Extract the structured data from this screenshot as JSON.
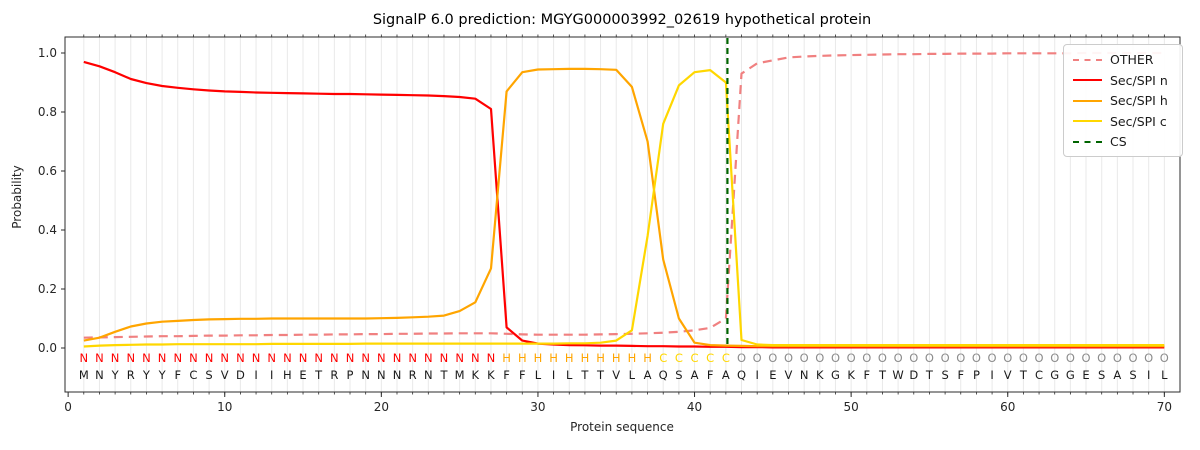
{
  "chart_data": {
    "type": "line",
    "title": "SignalP 6.0 prediction: MGYG000003992_02619 hypothetical protein",
    "xlabel": "Protein sequence",
    "ylabel": "Probability",
    "xlim": [
      -0.2,
      71.0
    ],
    "ylim": [
      -0.15,
      1.055
    ],
    "xticks": [
      0,
      10,
      20,
      30,
      40,
      50,
      60,
      70
    ],
    "yticks": [
      "0.0",
      "0.2",
      "0.4",
      "0.6",
      "0.8",
      "1.0"
    ],
    "grid": "light vertical gridline at every residue position, no horizontal grid",
    "x": [
      1,
      2,
      3,
      4,
      5,
      6,
      7,
      8,
      9,
      10,
      11,
      12,
      13,
      14,
      15,
      16,
      17,
      18,
      19,
      20,
      21,
      22,
      23,
      24,
      25,
      26,
      27,
      28,
      29,
      30,
      31,
      32,
      33,
      34,
      35,
      36,
      37,
      38,
      39,
      40,
      41,
      42,
      43,
      44,
      45,
      46,
      47,
      48,
      49,
      50,
      51,
      52,
      53,
      54,
      55,
      56,
      57,
      58,
      59,
      60,
      61,
      62,
      63,
      64,
      65,
      66,
      67,
      68,
      69,
      70
    ],
    "series": [
      {
        "name": "OTHER",
        "color": "#f08080",
        "style": "dashed",
        "values": [
          0.035,
          0.036,
          0.037,
          0.038,
          0.039,
          0.04,
          0.04,
          0.041,
          0.042,
          0.042,
          0.043,
          0.043,
          0.044,
          0.044,
          0.045,
          0.045,
          0.046,
          0.046,
          0.047,
          0.047,
          0.048,
          0.048,
          0.049,
          0.049,
          0.05,
          0.05,
          0.05,
          0.048,
          0.046,
          0.045,
          0.045,
          0.045,
          0.045,
          0.046,
          0.047,
          0.048,
          0.05,
          0.052,
          0.055,
          0.06,
          0.068,
          0.1,
          0.93,
          0.965,
          0.975,
          0.985,
          0.988,
          0.99,
          0.992,
          0.993,
          0.994,
          0.995,
          0.996,
          0.996,
          0.997,
          0.997,
          0.998,
          0.998,
          0.998,
          0.999,
          0.999,
          0.999,
          0.999,
          0.999,
          1.0,
          1.0,
          1.0,
          1.0,
          1.0,
          1.0
        ]
      },
      {
        "name": "Sec/SPI n",
        "color": "#ff0000",
        "style": "solid",
        "values": [
          0.97,
          0.955,
          0.935,
          0.912,
          0.898,
          0.888,
          0.882,
          0.877,
          0.873,
          0.87,
          0.868,
          0.866,
          0.865,
          0.864,
          0.863,
          0.862,
          0.861,
          0.861,
          0.86,
          0.859,
          0.858,
          0.857,
          0.856,
          0.854,
          0.851,
          0.845,
          0.81,
          0.07,
          0.025,
          0.015,
          0.012,
          0.01,
          0.009,
          0.008,
          0.008,
          0.007,
          0.006,
          0.006,
          0.005,
          0.005,
          0.004,
          0.004,
          0.003,
          0.003,
          0.002,
          0.002,
          0.002,
          0.002,
          0.002,
          0.002,
          0.002,
          0.002,
          0.002,
          0.002,
          0.002,
          0.002,
          0.002,
          0.002,
          0.002,
          0.002,
          0.002,
          0.002,
          0.002,
          0.002,
          0.002,
          0.002,
          0.002,
          0.002,
          0.002,
          0.002
        ]
      },
      {
        "name": "Sec/SPI h",
        "color": "#ffa500",
        "style": "solid",
        "values": [
          0.025,
          0.035,
          0.055,
          0.073,
          0.083,
          0.089,
          0.092,
          0.095,
          0.097,
          0.098,
          0.099,
          0.099,
          0.1,
          0.1,
          0.1,
          0.1,
          0.1,
          0.1,
          0.1,
          0.101,
          0.102,
          0.104,
          0.106,
          0.11,
          0.125,
          0.155,
          0.27,
          0.87,
          0.935,
          0.944,
          0.945,
          0.946,
          0.946,
          0.945,
          0.943,
          0.885,
          0.7,
          0.3,
          0.1,
          0.018,
          0.01,
          0.008,
          0.007,
          0.006,
          0.006,
          0.006,
          0.006,
          0.006,
          0.006,
          0.006,
          0.006,
          0.006,
          0.006,
          0.006,
          0.006,
          0.006,
          0.006,
          0.006,
          0.006,
          0.006,
          0.006,
          0.006,
          0.006,
          0.006,
          0.006,
          0.006,
          0.006,
          0.006,
          0.006,
          0.006
        ]
      },
      {
        "name": "Sec/SPI c",
        "color": "#ffd700",
        "style": "solid",
        "values": [
          0.005,
          0.008,
          0.01,
          0.011,
          0.012,
          0.012,
          0.013,
          0.013,
          0.013,
          0.013,
          0.013,
          0.013,
          0.014,
          0.014,
          0.014,
          0.014,
          0.014,
          0.014,
          0.015,
          0.015,
          0.015,
          0.015,
          0.015,
          0.015,
          0.015,
          0.015,
          0.015,
          0.015,
          0.015,
          0.015,
          0.015,
          0.016,
          0.016,
          0.018,
          0.025,
          0.06,
          0.38,
          0.76,
          0.89,
          0.935,
          0.942,
          0.9,
          0.027,
          0.012,
          0.01,
          0.01,
          0.01,
          0.01,
          0.01,
          0.01,
          0.01,
          0.01,
          0.01,
          0.01,
          0.01,
          0.01,
          0.01,
          0.01,
          0.01,
          0.01,
          0.01,
          0.01,
          0.01,
          0.01,
          0.01,
          0.01,
          0.01,
          0.01,
          0.01,
          0.01
        ]
      }
    ],
    "cs_line": {
      "label": "CS",
      "x": 42.1,
      "color": "#006400",
      "style": "dashed"
    },
    "sequence": "MNYRYYFCSVDIIHETRPNNNRNTMKKFFLILTTVLAQSAFAQIEVNKGKFTWDTSFPIVTCGGESASIL",
    "region_labels": "NNNNNNNNNNNNNNNNNNNNNNNNNNNHHHHHHHHHHCCCCCOOOOOOOOOOOOOOOOOOOOOOOOOOOO",
    "region_colors": {
      "N": "#ff0000",
      "H": "#ffa500",
      "C": "#ffd700",
      "O": "#8c8c8c"
    },
    "sequence_letter_color": "#1a1a1a",
    "legend": {
      "position": "upper right",
      "entries": [
        {
          "label": "OTHER",
          "color": "#f08080",
          "style": "dashed"
        },
        {
          "label": "Sec/SPI n",
          "color": "#ff0000",
          "style": "solid"
        },
        {
          "label": "Sec/SPI h",
          "color": "#ffa500",
          "style": "solid"
        },
        {
          "label": "Sec/SPI c",
          "color": "#ffd700",
          "style": "solid"
        },
        {
          "label": "CS",
          "color": "#006400",
          "style": "dashed"
        }
      ]
    }
  }
}
